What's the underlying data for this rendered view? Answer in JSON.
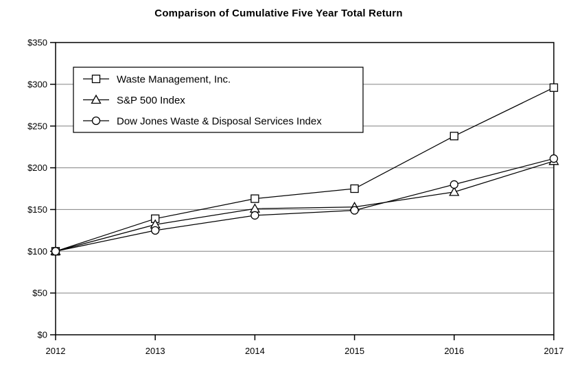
{
  "title": "Comparison of Cumulative Five Year Total Return",
  "chart_data": {
    "type": "line",
    "title": "Comparison of Cumulative Five Year Total Return",
    "x_tick_labels": [
      "2012",
      "2013",
      "2014",
      "2015",
      "2016",
      "2017"
    ],
    "series": [
      {
        "name": "Waste Management, Inc.",
        "marker": "square",
        "values": [
          100,
          139,
          163,
          175,
          238,
          296
        ]
      },
      {
        "name": "S&P 500 Index",
        "marker": "triangle",
        "values": [
          100,
          132,
          151,
          153,
          171,
          208
        ]
      },
      {
        "name": "Dow Jones Waste & Disposal Services Index",
        "marker": "circle",
        "values": [
          100,
          125,
          143,
          149,
          180,
          211
        ]
      }
    ],
    "ylim": [
      0,
      350
    ],
    "ytick_step": 50,
    "ytick_labels": [
      "$0",
      "$50",
      "$100",
      "$150",
      "$200",
      "$250",
      "$300",
      "$350"
    ],
    "grid": "horizontal",
    "legend_position": "top-left-inside",
    "colors": {
      "line": "#000000",
      "grid": "#808080",
      "axis": "#000000",
      "background": "#ffffff",
      "marker_fill": "#ffffff"
    }
  }
}
